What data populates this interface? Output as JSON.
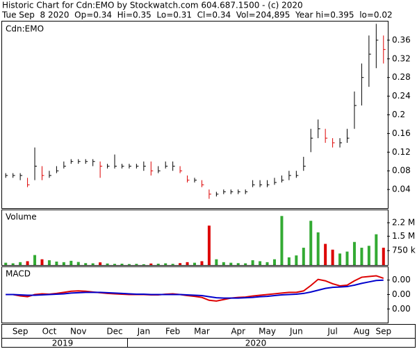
{
  "header": {
    "line1": "Historic Chart for Cdn:EMO by Stockwatch.com 604.687.1500 - (c) 2020",
    "line2": "Tue Sep  8 2020  Op=0.34  Hi=0.35  Lo=0.31  Cl=0.34  Vol=204,895  Year hi=0.395  lo=0.02"
  },
  "chart_data": [
    {
      "type": "ohlc",
      "label": "Cdn:EMO",
      "color_up": "#000000",
      "color_down": "#dd0000",
      "categories": [
        null,
        null,
        "Sep",
        null,
        null,
        null,
        "Oct",
        null,
        null,
        null,
        "Nov",
        null,
        null,
        null,
        null,
        "Dec",
        null,
        null,
        null,
        "Jan",
        null,
        null,
        null,
        "Feb",
        null,
        null,
        null,
        "Mar",
        null,
        null,
        null,
        null,
        "Apr",
        null,
        null,
        null,
        "May",
        null,
        null,
        null,
        "Jun",
        null,
        null,
        null,
        null,
        "Jul",
        null,
        null,
        null,
        "Aug",
        null,
        null,
        "Sep"
      ],
      "years": [
        "2019",
        "2020"
      ],
      "high": [
        0.075,
        0.075,
        0.075,
        0.065,
        0.13,
        0.09,
        0.08,
        0.09,
        0.1,
        0.105,
        0.105,
        0.105,
        0.105,
        0.1,
        0.095,
        0.115,
        0.095,
        0.095,
        0.095,
        0.1,
        0.1,
        0.09,
        0.1,
        0.1,
        0.09,
        0.07,
        0.065,
        0.06,
        0.04,
        0.035,
        0.04,
        0.04,
        0.04,
        0.04,
        0.06,
        0.06,
        0.06,
        0.065,
        0.07,
        0.08,
        0.08,
        0.11,
        0.17,
        0.19,
        0.17,
        0.15,
        0.15,
        0.17,
        0.25,
        0.31,
        0.37,
        0.395,
        0.37
      ],
      "low": [
        0.065,
        0.065,
        0.06,
        0.045,
        0.06,
        0.06,
        0.065,
        0.075,
        0.085,
        0.095,
        0.095,
        0.095,
        0.09,
        0.065,
        0.085,
        0.085,
        0.085,
        0.085,
        0.085,
        0.08,
        0.07,
        0.075,
        0.085,
        0.08,
        0.075,
        0.055,
        0.055,
        0.045,
        0.02,
        0.025,
        0.03,
        0.03,
        0.03,
        0.03,
        0.045,
        0.045,
        0.045,
        0.05,
        0.055,
        0.06,
        0.065,
        0.08,
        0.12,
        0.15,
        0.14,
        0.13,
        0.13,
        0.14,
        0.17,
        0.22,
        0.26,
        0.3,
        0.31
      ],
      "close": [
        0.07,
        0.07,
        0.07,
        0.05,
        0.09,
        0.07,
        0.07,
        0.08,
        0.09,
        0.1,
        0.1,
        0.1,
        0.1,
        0.09,
        0.09,
        0.09,
        0.09,
        0.09,
        0.09,
        0.09,
        0.08,
        0.08,
        0.09,
        0.09,
        0.08,
        0.06,
        0.06,
        0.05,
        0.03,
        0.03,
        0.035,
        0.035,
        0.035,
        0.035,
        0.05,
        0.05,
        0.05,
        0.055,
        0.06,
        0.07,
        0.07,
        0.09,
        0.15,
        0.17,
        0.15,
        0.14,
        0.14,
        0.15,
        0.22,
        0.28,
        0.33,
        0.36,
        0.34
      ],
      "ylim": [
        0,
        0.4
      ],
      "yticks": [
        0.04,
        0.08,
        0.12,
        0.16,
        0.2,
        0.24,
        0.28,
        0.32,
        0.36
      ]
    },
    {
      "type": "bar",
      "label": "Volume",
      "color_up": "#33aa33",
      "color_down": "#dd0000",
      "values": [
        120000,
        90000,
        150000,
        200000,
        520000,
        300000,
        250000,
        180000,
        150000,
        220000,
        160000,
        100000,
        90000,
        140000,
        80000,
        60000,
        70000,
        50000,
        60000,
        40000,
        80000,
        70000,
        90000,
        60000,
        100000,
        150000,
        120000,
        200000,
        2050000,
        300000,
        150000,
        120000,
        100000,
        90000,
        250000,
        200000,
        150000,
        300000,
        2550000,
        400000,
        500000,
        900000,
        2300000,
        1700000,
        1100000,
        800000,
        600000,
        700000,
        1200000,
        900000,
        1000000,
        1600000,
        900000
      ],
      "ylim": [
        0,
        2850000
      ],
      "yticks": [
        {
          "value": 750000,
          "label": "750 k"
        },
        {
          "value": 1500000,
          "label": "1.5 M"
        },
        {
          "value": 2200000,
          "label": "2.2 M"
        }
      ]
    },
    {
      "type": "line",
      "label": "MACD",
      "series": [
        {
          "color": "#dd0000",
          "values": [
            0,
            0,
            -0.0004,
            -0.0006,
            0,
            0.0002,
            0.0001,
            0.0003,
            0.0006,
            0.0009,
            0.001,
            0.0009,
            0.0007,
            0.0005,
            0.0003,
            0.0002,
            0.0001,
            0,
            0,
            0,
            -0.0001,
            -0.0001,
            0.0001,
            0.0002,
            0,
            -0.0003,
            -0.0005,
            -0.0008,
            -0.0016,
            -0.0018,
            -0.0014,
            -0.001,
            -0.0008,
            -0.0007,
            -0.0004,
            -0.0002,
            0,
            0.0002,
            0.0004,
            0.0006,
            0.0006,
            0.001,
            0.0025,
            0.0042,
            0.0038,
            0.003,
            0.0024,
            0.0026,
            0.0038,
            0.0048,
            0.005,
            0.0052,
            0.0045
          ]
        },
        {
          "color": "#0000cc",
          "values": [
            0,
            0,
            -0.0001,
            -0.0002,
            -0.0002,
            -0.0001,
            0,
            0.0001,
            0.0002,
            0.0004,
            0.0005,
            0.0006,
            0.0006,
            0.0006,
            0.0005,
            0.0004,
            0.0003,
            0.0002,
            0.0001,
            0.0001,
            0,
            0,
            0,
            0,
            0,
            -0.0001,
            -0.0002,
            -0.0003,
            -0.0006,
            -0.0009,
            -0.001,
            -0.001,
            -0.001,
            -0.0009,
            -0.0008,
            -0.0006,
            -0.0005,
            -0.0003,
            -0.0001,
            0,
            0.0001,
            0.0003,
            0.0007,
            0.0012,
            0.0017,
            0.002,
            0.0021,
            0.0022,
            0.0026,
            0.0031,
            0.0035,
            0.0039,
            0.004
          ]
        }
      ],
      "ylim": [
        -0.0078,
        0.0076
      ],
      "yticks": [
        {
          "value": -0.004,
          "label": "0.00"
        },
        {
          "value": 0,
          "label": "0.00"
        },
        {
          "value": 0.004,
          "label": "0.00"
        }
      ]
    }
  ]
}
